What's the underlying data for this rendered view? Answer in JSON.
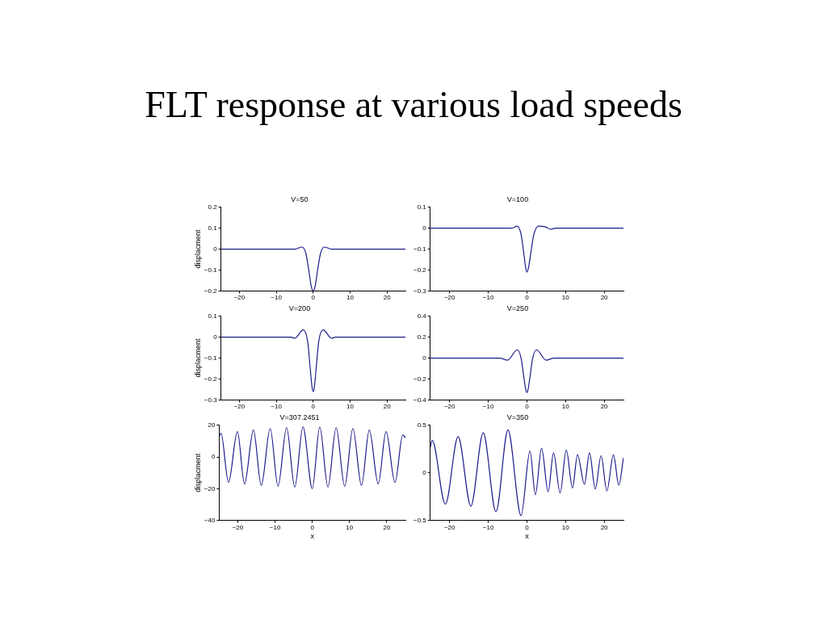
{
  "chart_data": [
    {
      "type": "line",
      "title": "V=50",
      "annotations": [
        "FLT response at various load speeds"
      ],
      "ylabel": "displacment",
      "xlim": [
        -25,
        25
      ],
      "xticks": [
        -20,
        -10,
        0,
        10,
        20
      ],
      "ylim": [
        -0.2,
        0.2
      ],
      "yticks": [
        -0.2,
        -0.1,
        0,
        0.1,
        0.2
      ],
      "grid": false,
      "legend": false,
      "series": [
        {
          "color": "#1c1c8c",
          "x": [
            -25,
            -5,
            -3,
            -2,
            -1.2,
            -0.5,
            0,
            0.5,
            1.2,
            2,
            3,
            5,
            25
          ],
          "values": [
            0,
            0,
            0.01,
            -0.02,
            -0.1,
            -0.18,
            -0.2,
            -0.18,
            -0.1,
            -0.02,
            0.01,
            0,
            0
          ]
        }
      ]
    },
    {
      "type": "line",
      "title": "V=100",
      "xlim": [
        -25,
        25
      ],
      "xticks": [
        -20,
        -10,
        0,
        10,
        20
      ],
      "ylim": [
        -0.3,
        0.1
      ],
      "yticks": [
        -0.3,
        -0.2,
        -0.1,
        0,
        0.1
      ],
      "grid": false,
      "legend": false,
      "series": [
        {
          "color": "#1c1c8c",
          "x": [
            -25,
            -4,
            -2.5,
            -1.5,
            -0.8,
            -0.3,
            0,
            0.4,
            1,
            1.8,
            3,
            5,
            6,
            7.5,
            25
          ],
          "values": [
            0,
            0,
            0.01,
            -0.03,
            -0.12,
            -0.19,
            -0.21,
            -0.19,
            -0.12,
            -0.03,
            0.01,
            0.005,
            -0.005,
            0,
            0
          ]
        }
      ]
    },
    {
      "type": "line",
      "title": "V=200",
      "ylabel": "displacment",
      "xlim": [
        -25,
        25
      ],
      "xticks": [
        -20,
        -10,
        0,
        10,
        20
      ],
      "ylim": [
        -0.3,
        0.1
      ],
      "yticks": [
        -0.3,
        -0.2,
        -0.1,
        0,
        0.1
      ],
      "grid": false,
      "legend": false,
      "series": [
        {
          "color": "#1c1c8c",
          "x": [
            -25,
            -6,
            -5,
            -2.7,
            -1.5,
            -0.8,
            -0.3,
            0,
            0.3,
            0.8,
            1.5,
            2.7,
            5,
            6,
            25
          ],
          "values": [
            0,
            0,
            -0.005,
            0.035,
            -0.02,
            -0.15,
            -0.24,
            -0.26,
            -0.24,
            -0.15,
            -0.02,
            0.035,
            -0.005,
            0,
            0
          ]
        }
      ]
    },
    {
      "type": "line",
      "title": "V=250",
      "xlim": [
        -25,
        25
      ],
      "xticks": [
        -20,
        -10,
        0,
        10,
        20
      ],
      "ylim": [
        -0.4,
        0.4
      ],
      "yticks": [
        -0.4,
        -0.2,
        0,
        0.2,
        0.4
      ],
      "grid": false,
      "legend": false,
      "series": [
        {
          "color": "#1c1c8c",
          "x": [
            -25,
            -8,
            -7,
            -5,
            -2.5,
            -1.5,
            -0.8,
            -0.3,
            0,
            0.3,
            0.8,
            1.5,
            2.5,
            5,
            7,
            8,
            25
          ],
          "values": [
            0,
            0,
            0,
            -0.02,
            0.08,
            0,
            -0.18,
            -0.3,
            -0.33,
            -0.3,
            -0.18,
            0,
            0.08,
            -0.02,
            0,
            0,
            0
          ]
        }
      ]
    },
    {
      "type": "line",
      "title": "V=307.2451",
      "ylabel": "displacment",
      "xlabel": "x",
      "xlim": [
        -25,
        25
      ],
      "xticks": [
        -20,
        -10,
        0,
        10,
        20
      ],
      "ylim": [
        -40,
        20
      ],
      "yticks": [
        -40,
        -20,
        0,
        20
      ],
      "grid": false,
      "legend": false,
      "series": [
        {
          "color": "#1c1c8c",
          "x": [
            -25,
            -24.5,
            -22.5,
            -20.1,
            -18.2,
            -15.8,
            -13.7,
            -11.3,
            -9.2,
            -6.9,
            -4.7,
            -2.5,
            0,
            2,
            4.2,
            6.4,
            8.7,
            10.9,
            13.2,
            15.3,
            17.7,
            19.8,
            22.2,
            24.3,
            25
          ],
          "values": [
            13,
            15,
            -16,
            16,
            -17,
            17,
            -18,
            18,
            -18.5,
            18.5,
            -19,
            19,
            -20,
            19,
            -19,
            18.5,
            -18.5,
            18,
            -18,
            17,
            -17,
            16,
            -16,
            14,
            12
          ]
        }
      ]
    },
    {
      "type": "line",
      "title": "V=350",
      "xlabel": "x",
      "xlim": [
        -25,
        25
      ],
      "xticks": [
        -20,
        -10,
        0,
        10,
        20
      ],
      "ylim": [
        -0.5,
        0.5
      ],
      "yticks": [
        -0.5,
        0,
        0.5
      ],
      "grid": false,
      "legend": false,
      "series": [
        {
          "color": "#1c1c8c",
          "x": [
            -25,
            -24.5,
            -21.1,
            -17.8,
            -14.5,
            -11.3,
            -8,
            -4.9,
            -1.5,
            0.8,
            2.2,
            3.8,
            5.5,
            6.9,
            8.6,
            10.2,
            11.8,
            13.1,
            14.9,
            16.2,
            17.7,
            19.2,
            20.7,
            22.4,
            23.8,
            25
          ],
          "values": [
            0.27,
            0.34,
            -0.33,
            0.38,
            -0.35,
            0.42,
            -0.41,
            0.45,
            -0.45,
            0.23,
            -0.23,
            0.26,
            -0.2,
            0.21,
            -0.21,
            0.24,
            -0.16,
            0.19,
            -0.12,
            0.21,
            -0.17,
            0.18,
            -0.19,
            0.19,
            -0.13,
            0.16
          ]
        }
      ]
    }
  ]
}
